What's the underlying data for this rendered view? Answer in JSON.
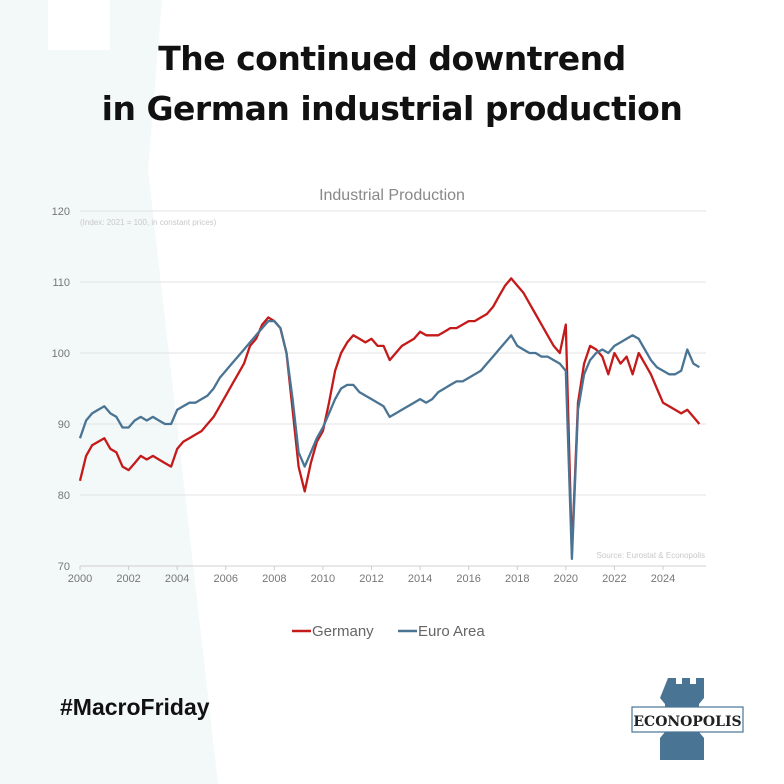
{
  "headline": {
    "line1": "The continued downtrend",
    "line2": "in German industrial production"
  },
  "footer": {
    "hashtag": "#MacroFriday",
    "logo_text": "ECONOPOLIS"
  },
  "colors": {
    "germany": "#c41a1a",
    "euro_area": "#4a7494",
    "grid": "#e3e3e3",
    "axis_text": "#777777",
    "logo_blue": "#4a7494"
  },
  "chart_data": {
    "type": "line",
    "title": "Industrial Production",
    "subtitle": "(Index: 2021 = 100, in constant prices)",
    "source": "Source: Eurostat & Econopolis",
    "xlabel": "",
    "ylabel": "",
    "xlim": [
      2000,
      2025.75
    ],
    "ylim": [
      70,
      120
    ],
    "yticks": [
      70,
      80,
      90,
      100,
      110,
      120
    ],
    "xticks": [
      2000,
      2002,
      2004,
      2006,
      2008,
      2010,
      2012,
      2014,
      2016,
      2018,
      2020,
      2022,
      2024
    ],
    "grid": true,
    "legend": "bottom-center",
    "x": [
      2000.0,
      2000.25,
      2000.5,
      2000.75,
      2001.0,
      2001.25,
      2001.5,
      2001.75,
      2002.0,
      2002.25,
      2002.5,
      2002.75,
      2003.0,
      2003.25,
      2003.5,
      2003.75,
      2004.0,
      2004.25,
      2004.5,
      2004.75,
      2005.0,
      2005.25,
      2005.5,
      2005.75,
      2006.0,
      2006.25,
      2006.5,
      2006.75,
      2007.0,
      2007.25,
      2007.5,
      2007.75,
      2008.0,
      2008.25,
      2008.5,
      2008.75,
      2009.0,
      2009.25,
      2009.5,
      2009.75,
      2010.0,
      2010.25,
      2010.5,
      2010.75,
      2011.0,
      2011.25,
      2011.5,
      2011.75,
      2012.0,
      2012.25,
      2012.5,
      2012.75,
      2013.0,
      2013.25,
      2013.5,
      2013.75,
      2014.0,
      2014.25,
      2014.5,
      2014.75,
      2015.0,
      2015.25,
      2015.5,
      2015.75,
      2016.0,
      2016.25,
      2016.5,
      2016.75,
      2017.0,
      2017.25,
      2017.5,
      2017.75,
      2018.0,
      2018.25,
      2018.5,
      2018.75,
      2019.0,
      2019.25,
      2019.5,
      2019.75,
      2020.0,
      2020.25,
      2020.5,
      2020.75,
      2021.0,
      2021.25,
      2021.5,
      2021.75,
      2022.0,
      2022.25,
      2022.5,
      2022.75,
      2023.0,
      2023.25,
      2023.5,
      2023.75,
      2024.0,
      2024.25,
      2024.5,
      2024.75,
      2025.0,
      2025.25,
      2025.5
    ],
    "series": [
      {
        "name": "Germany",
        "values": [
          82.0,
          85.5,
          87.0,
          87.5,
          88.0,
          86.5,
          86.0,
          84.0,
          83.5,
          84.5,
          85.5,
          85.0,
          85.5,
          85.0,
          84.5,
          84.0,
          86.5,
          87.5,
          88.0,
          88.5,
          89.0,
          90.0,
          91.0,
          92.5,
          94.0,
          95.5,
          97.0,
          98.5,
          101.0,
          102.0,
          104.0,
          105.0,
          104.5,
          103.5,
          100.0,
          92.0,
          84.0,
          80.5,
          84.5,
          87.5,
          89.0,
          93.0,
          97.5,
          100.0,
          101.5,
          102.5,
          102.0,
          101.5,
          102.0,
          101.0,
          101.0,
          99.0,
          100.0,
          101.0,
          101.5,
          102.0,
          103.0,
          102.5,
          102.5,
          102.5,
          103.0,
          103.5,
          103.5,
          104.0,
          104.5,
          104.5,
          105.0,
          105.5,
          106.5,
          108.0,
          109.5,
          110.5,
          109.5,
          108.5,
          107.0,
          105.5,
          104.0,
          102.5,
          101.0,
          100.0,
          104.0,
          72.0,
          93.0,
          98.5,
          101.0,
          100.5,
          99.5,
          97.0,
          100.0,
          98.5,
          99.5,
          97.0,
          100.0,
          98.5,
          97.0,
          95.0,
          93.0,
          92.5,
          92.0,
          91.5,
          92.0,
          91.0,
          90.0
        ]
      },
      {
        "name": "Euro Area",
        "values": [
          88.0,
          90.5,
          91.5,
          92.0,
          92.5,
          91.5,
          91.0,
          89.5,
          89.5,
          90.5,
          91.0,
          90.5,
          91.0,
          90.5,
          90.0,
          90.0,
          92.0,
          92.5,
          93.0,
          93.0,
          93.5,
          94.0,
          95.0,
          96.5,
          97.5,
          98.5,
          99.5,
          100.5,
          101.5,
          102.5,
          103.5,
          104.5,
          104.5,
          103.5,
          100.0,
          93.5,
          86.0,
          84.0,
          86.0,
          88.0,
          89.5,
          91.5,
          93.5,
          95.0,
          95.5,
          95.5,
          94.5,
          94.0,
          93.5,
          93.0,
          92.5,
          91.0,
          91.5,
          92.0,
          92.5,
          93.0,
          93.5,
          93.0,
          93.5,
          94.5,
          95.0,
          95.5,
          96.0,
          96.0,
          96.5,
          97.0,
          97.5,
          98.5,
          99.5,
          100.5,
          101.5,
          102.5,
          101.0,
          100.5,
          100.0,
          100.0,
          99.5,
          99.5,
          99.0,
          98.5,
          97.5,
          71.0,
          92.0,
          97.0,
          99.0,
          100.0,
          100.5,
          100.0,
          101.0,
          101.5,
          102.0,
          102.5,
          102.0,
          100.5,
          99.0,
          98.0,
          97.5,
          97.0,
          97.0,
          97.5,
          100.5,
          98.5,
          98.0
        ]
      }
    ]
  }
}
